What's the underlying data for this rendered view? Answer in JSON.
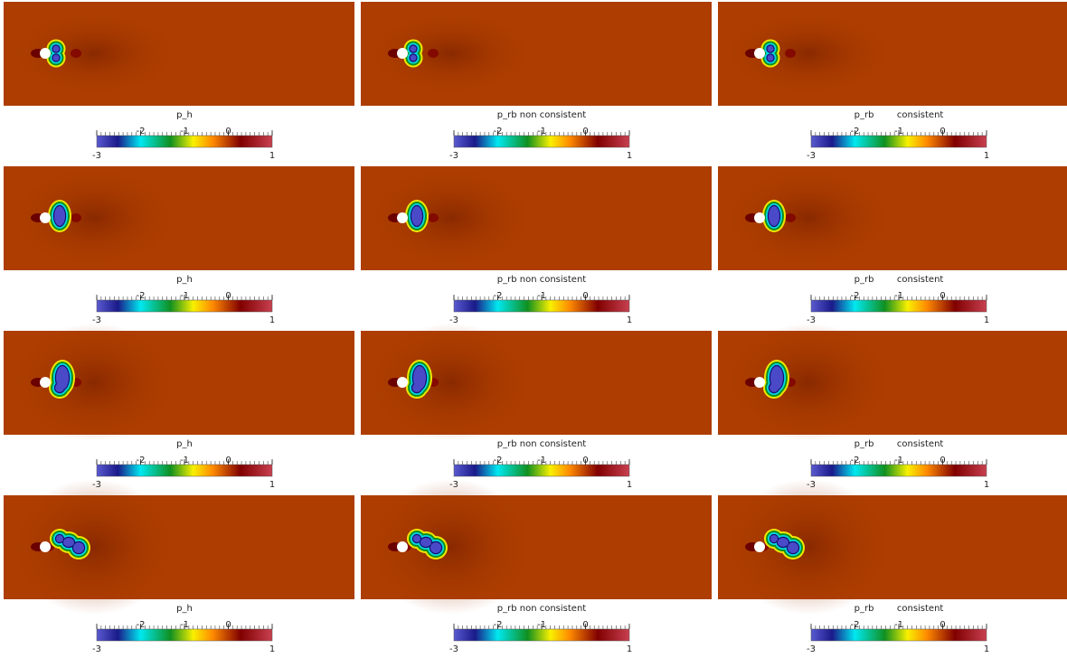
{
  "panels": [
    [
      {
        "label": "p_h",
        "colorbar": {
          "ticks": [
            -3,
            -2,
            -1,
            0,
            1
          ]
        }
      },
      {
        "label": "p_rb non consistent",
        "colorbar": {
          "ticks": [
            -3,
            -2,
            -1,
            0,
            1
          ]
        }
      },
      {
        "label": "p_rb        consistent",
        "colorbar": {
          "ticks": [
            -3,
            -2,
            -1,
            0,
            1
          ]
        }
      }
    ],
    [
      {
        "label": "p_h",
        "colorbar": {
          "ticks": [
            -3,
            -2,
            -1,
            0,
            1
          ]
        }
      },
      {
        "label": "p_rb non consistent",
        "colorbar": {
          "ticks": [
            -3,
            -2,
            -1,
            0,
            1
          ]
        }
      },
      {
        "label": "p_rb        consistent",
        "colorbar": {
          "ticks": [
            -3,
            -2,
            -1,
            0,
            1
          ]
        }
      }
    ],
    [
      {
        "label": "p_h",
        "colorbar": {
          "ticks": [
            -3,
            -2,
            -1,
            0,
            1
          ]
        }
      },
      {
        "label": "p_rb non consistent",
        "colorbar": {
          "ticks": [
            -3,
            -2,
            -1,
            0,
            1
          ]
        }
      },
      {
        "label": "p_rb        consistent",
        "colorbar": {
          "ticks": [
            -3,
            -2,
            -1,
            0,
            1
          ]
        }
      }
    ],
    [
      {
        "label": "p_h",
        "colorbar": {
          "ticks": [
            -3,
            -2,
            -1,
            0,
            1
          ]
        }
      },
      {
        "label": "p_rb non consistent",
        "colorbar": {
          "ticks": [
            -3,
            -2,
            -1,
            0,
            1
          ]
        }
      },
      {
        "label": "p_rb        consistent",
        "colorbar": {
          "ticks": [
            -3,
            -2,
            -1,
            0,
            1
          ]
        }
      }
    ]
  ]
}
